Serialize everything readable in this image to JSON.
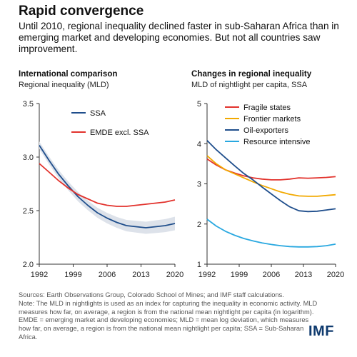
{
  "header": {
    "title": "Rapid convergence",
    "subtitle": "Until 2010, regional inequality declined faster in sub-Saharan Africa than in emerging market and developing economies. But not all countries saw improvement."
  },
  "colors": {
    "ssa": "#1f4e8c",
    "emde": "#e2322c",
    "fragile": "#e2322c",
    "frontier": "#f2a900",
    "oil": "#1f4e8c",
    "resource": "#29a8e0",
    "band": "#dde2ea",
    "axis": "#333333"
  },
  "chart_data": [
    {
      "type": "line",
      "title": "International comparison",
      "subtitle": "Regional inequality (MLD)",
      "xlim": [
        1992,
        2020
      ],
      "ylim": [
        2.0,
        3.5
      ],
      "yticks": [
        "2.0",
        "2.5",
        "3.0",
        "3.5"
      ],
      "xticks": [
        "1992",
        "1999",
        "2006",
        "2013",
        "2020"
      ],
      "confidence_band": true,
      "series": [
        {
          "name": "SSA",
          "color": "#1f4e8c",
          "x": [
            1992,
            1994,
            1996,
            1998,
            2000,
            2002,
            2004,
            2006,
            2008,
            2010,
            2012,
            2014,
            2016,
            2018,
            2020
          ],
          "y": [
            3.11,
            2.97,
            2.84,
            2.73,
            2.63,
            2.55,
            2.48,
            2.43,
            2.39,
            2.36,
            2.35,
            2.34,
            2.35,
            2.36,
            2.38
          ]
        },
        {
          "name": "EMDE excl. SSA",
          "color": "#e2322c",
          "x": [
            1992,
            1994,
            1996,
            1998,
            2000,
            2002,
            2004,
            2006,
            2008,
            2010,
            2012,
            2014,
            2016,
            2018,
            2020
          ],
          "y": [
            2.94,
            2.86,
            2.78,
            2.71,
            2.65,
            2.61,
            2.57,
            2.55,
            2.54,
            2.54,
            2.55,
            2.56,
            2.57,
            2.58,
            2.6
          ]
        }
      ]
    },
    {
      "type": "line",
      "title": "Changes in regional inequality",
      "subtitle": "MLD of nightlight per capita, SSA",
      "xlim": [
        1992,
        2020
      ],
      "ylim": [
        1,
        5
      ],
      "yticks": [
        "1",
        "2",
        "3",
        "4",
        "5"
      ],
      "xticks": [
        "1992",
        "1999",
        "2006",
        "2013",
        "2020"
      ],
      "series": [
        {
          "name": "Fragile states",
          "color": "#e2322c",
          "x": [
            1992,
            1994,
            1996,
            1998,
            2000,
            2002,
            2004,
            2006,
            2008,
            2010,
            2012,
            2014,
            2016,
            2018,
            2020
          ],
          "y": [
            3.62,
            3.47,
            3.35,
            3.27,
            3.2,
            3.15,
            3.12,
            3.1,
            3.1,
            3.12,
            3.15,
            3.14,
            3.15,
            3.16,
            3.18
          ]
        },
        {
          "name": "Frontier markets",
          "color": "#f2a900",
          "x": [
            1992,
            1994,
            1996,
            1998,
            2000,
            2002,
            2004,
            2006,
            2008,
            2010,
            2012,
            2014,
            2016,
            2018,
            2020
          ],
          "y": [
            3.7,
            3.5,
            3.35,
            3.25,
            3.15,
            3.05,
            2.96,
            2.88,
            2.8,
            2.74,
            2.7,
            2.69,
            2.69,
            2.71,
            2.73
          ]
        },
        {
          "name": "Oil-exporters",
          "color": "#1f4e8c",
          "x": [
            1992,
            1994,
            1996,
            1998,
            2000,
            2002,
            2004,
            2006,
            2008,
            2010,
            2012,
            2014,
            2016,
            2018,
            2020
          ],
          "y": [
            4.08,
            3.85,
            3.65,
            3.45,
            3.26,
            3.1,
            2.92,
            2.75,
            2.58,
            2.43,
            2.33,
            2.31,
            2.32,
            2.35,
            2.38
          ]
        },
        {
          "name": "Resource intensive",
          "color": "#29a8e0",
          "x": [
            1992,
            1994,
            1996,
            1998,
            2000,
            2002,
            2004,
            2006,
            2008,
            2010,
            2012,
            2014,
            2016,
            2018,
            2020
          ],
          "y": [
            2.12,
            1.95,
            1.82,
            1.72,
            1.64,
            1.58,
            1.53,
            1.49,
            1.46,
            1.44,
            1.43,
            1.43,
            1.44,
            1.46,
            1.5
          ]
        }
      ]
    }
  ],
  "notes": {
    "sources": "Sources: Earth Observations Group, Colorado School of Mines; and IMF staff calculations.",
    "note": "Note: The MLD in nightlights is used as an index for capturing the inequality in economic activity. MLD measures how far, on average, a region is from the national mean nightlight per capita (in logarithm). EMDE = emerging market and developing economies; MLD = mean log deviation, which measures how far, on average, a region is from the national mean nightlight per capita; SSA = Sub-Saharan Africa."
  },
  "logo": {
    "text": "IMF"
  }
}
